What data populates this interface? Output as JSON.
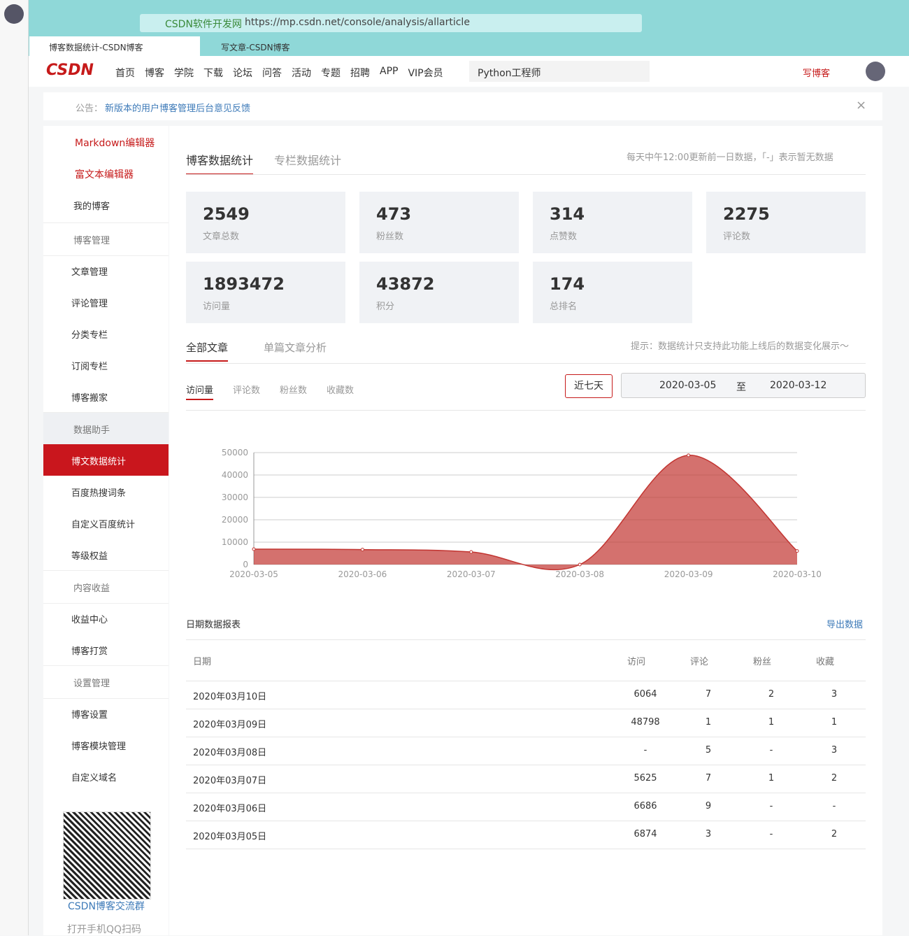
{
  "browser": {
    "site": "CSDN软件开发网",
    "url": "https://mp.csdn.net/console/analysis/allarticle",
    "tabs": [
      "博客数据统计-CSDN博客",
      "写文章-CSDN博客"
    ]
  },
  "nav": {
    "logo": "CSDN",
    "links": [
      "首页",
      "博客",
      "学院",
      "下载",
      "论坛",
      "问答",
      "活动",
      "专题",
      "招聘",
      "APP",
      "VIP会员"
    ],
    "search": "Python工程师",
    "write": "写博客"
  },
  "notice": {
    "label": "公告：",
    "text": "新版本的用户博客管理后台意见反馈"
  },
  "sidebar": {
    "editors": [
      "Markdown编辑器",
      "富文本编辑器"
    ],
    "my_blog": "我的博客",
    "groups": [
      {
        "title": "博客管理",
        "items": [
          "文章管理",
          "评论管理",
          "分类专栏",
          "订阅专栏",
          "博客搬家"
        ]
      },
      {
        "title": "数据助手",
        "items": [
          "博文数据统计",
          "百度热搜词条",
          "自定义百度统计",
          "等级权益"
        ]
      },
      {
        "title": "内容收益",
        "items": [
          "收益中心",
          "博客打赏"
        ]
      },
      {
        "title": "设置管理",
        "items": [
          "博客设置",
          "博客模块管理",
          "自定义域名"
        ]
      }
    ],
    "qr_caption": "CSDN博客交流群",
    "qr_note": "打开手机QQ扫码"
  },
  "main": {
    "tabs": [
      "博客数据统计",
      "专栏数据统计"
    ],
    "tip": "每天中午12:00更新前一日数据，「-」表示暂无数据",
    "stats": [
      {
        "value": 2549,
        "label": "文章总数"
      },
      {
        "value": 473,
        "label": "粉丝数"
      },
      {
        "value": 314,
        "label": "点赞数"
      },
      {
        "value": 2275,
        "label": "评论数"
      },
      {
        "value": 1893472,
        "label": "访问量"
      },
      {
        "value": 43872,
        "label": "积分"
      },
      {
        "value": 174,
        "label": "总排名"
      }
    ],
    "subtabs": [
      "全部文章",
      "单篇文章分析"
    ],
    "hint": "提示：数据统计只支持此功能上线后的数据变化展示～",
    "metrics": [
      "访问量",
      "评论数",
      "粉丝数",
      "收藏数"
    ],
    "range_button": "近七天",
    "date_from": "2020-03-05",
    "date_sep": "至",
    "date_to": "2020-03-12"
  },
  "chart_data": {
    "type": "area",
    "categories": [
      "2020-03-05",
      "2020-03-06",
      "2020-03-07",
      "2020-03-08",
      "2020-03-09",
      "2020-03-10"
    ],
    "values": [
      6874,
      6686,
      5625,
      0,
      48798,
      6064
    ],
    "color": "#c23531",
    "ylim": [
      0,
      50000
    ],
    "yticks": [
      0,
      10000,
      20000,
      30000,
      40000,
      50000
    ],
    "grid": true
  },
  "table": {
    "title": "日期数据报表",
    "export": "导出数据",
    "header": [
      "日期",
      "访问",
      "评论",
      "粉丝",
      "收藏"
    ],
    "rows": [
      [
        "2020年03月10日",
        6064,
        7,
        2,
        3
      ],
      [
        "2020年03月09日",
        48798,
        1,
        1,
        1
      ],
      [
        "2020年03月08日",
        "-",
        5,
        "-",
        3
      ],
      [
        "2020年03月07日",
        5625,
        7,
        1,
        2
      ],
      [
        "2020年03月06日",
        6686,
        9,
        "-",
        "-"
      ],
      [
        "2020年03月05日",
        6874,
        3,
        "-",
        2
      ]
    ]
  }
}
